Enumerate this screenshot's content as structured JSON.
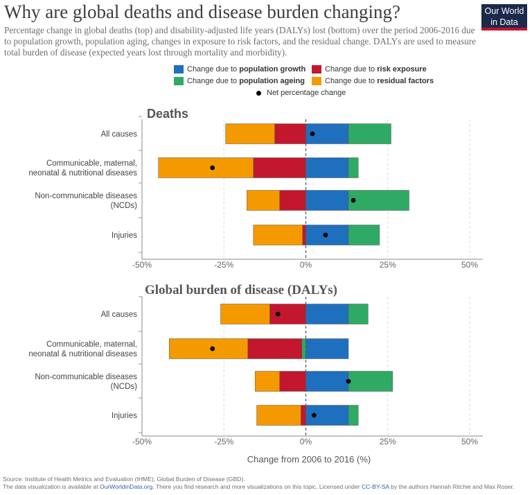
{
  "header": {
    "title": "Why are global deaths and disease burden changing?",
    "subtitle": "Percentage change in global deaths (top) and disability-adjusted life years (DALYs) lost (bottom) over the period 2006-2016 due to population growth, population aging, changes in exposure to risk factors, and the residual change. DALYs are used to measure total burden of disease (expected years lost through mortality and morbidity).",
    "logo_line1": "Our World",
    "logo_line2": "in Data"
  },
  "legend": {
    "growth_prefix": "Change due to ",
    "growth_bold": "population growth",
    "risk_prefix": "Change due to ",
    "risk_bold": "risk exposure",
    "ageing_prefix": "Change due to ",
    "ageing_bold": "population ageing",
    "residual_prefix": "Change due to ",
    "residual_bold": "residual factors",
    "net": "Net percentage change"
  },
  "colors": {
    "growth": "#1f6fbf",
    "ageing": "#2eaa64",
    "risk": "#c3172e",
    "residual": "#f49a00",
    "net": "#000000",
    "grid": "#dddddd",
    "zero_line": "#555555"
  },
  "chart_data": [
    {
      "type": "bar",
      "orientation": "horizontal",
      "stacked": "diverging",
      "title": "Deaths",
      "categories": [
        "All causes",
        "Communicable, maternal,\nneonatal & nutritional diseases",
        "Non-communicable diseases\n(NCDs)",
        "Injuries"
      ],
      "series": [
        {
          "name": "Change due to population growth",
          "key": "growth",
          "values": [
            13.0,
            13.0,
            13.0,
            13.0
          ]
        },
        {
          "name": "Change due to population ageing",
          "key": "ageing",
          "values": [
            13.0,
            3.0,
            18.5,
            9.5
          ]
        },
        {
          "name": "Change due to risk exposure",
          "key": "risk",
          "values": [
            -9.5,
            -16.0,
            -8.0,
            -1.0
          ]
        },
        {
          "name": "Change due to residual factors",
          "key": "residual",
          "values": [
            -15.0,
            -29.0,
            -10.0,
            -15.0
          ]
        }
      ],
      "net": [
        2.0,
        -28.5,
        14.5,
        6.0
      ],
      "xlim": [
        -50,
        50
      ],
      "xticks": [
        "-50%",
        "-25%",
        "0%",
        "25%",
        "50%"
      ],
      "xtick_values": [
        -50,
        -25,
        0,
        25,
        50
      ],
      "xlabel": ""
    },
    {
      "type": "bar",
      "orientation": "horizontal",
      "stacked": "diverging",
      "title": "Global burden of disease (DALYs)",
      "categories": [
        "All causes",
        "Communicable, maternal,\nneonatal & nutritional diseases",
        "Non-communicable diseases\n(NCDs)",
        "Injuries"
      ],
      "series": [
        {
          "name": "Change due to population growth",
          "key": "growth",
          "values": [
            13.0,
            13.0,
            13.0,
            13.0
          ]
        },
        {
          "name": "Change due to population ageing",
          "key": "ageing",
          "values": [
            6.0,
            -1.2,
            13.5,
            3.0
          ]
        },
        {
          "name": "Change due to risk exposure",
          "key": "risk",
          "values": [
            -11.0,
            -16.5,
            -8.0,
            -1.5
          ]
        },
        {
          "name": "Change due to residual factors",
          "key": "residual",
          "values": [
            -15.0,
            -24.0,
            -7.5,
            -13.5
          ]
        }
      ],
      "net": [
        -8.5,
        -28.5,
        13.0,
        2.5
      ],
      "xlim": [
        -50,
        50
      ],
      "xticks": [
        "-50%",
        "-25%",
        "0%",
        "25%",
        "50%"
      ],
      "xtick_values": [
        -50,
        -25,
        0,
        25,
        50
      ],
      "xlabel": "Change from 2006 to 2016 (%)"
    }
  ],
  "footer": {
    "source": "Source: Institute of Health Metrics and Evaluation (IHME), Global Burden of Disease (GBD).",
    "line2_a": "The data visualization is available at ",
    "line2_link": "OurWorldinData.org",
    "line2_b": ". There you find research and more visualizations on this topic.  Licensed under ",
    "line2_license": "CC-BY-SA",
    "line2_c": " by the authors Hannah Ritchie and Max Roser."
  }
}
